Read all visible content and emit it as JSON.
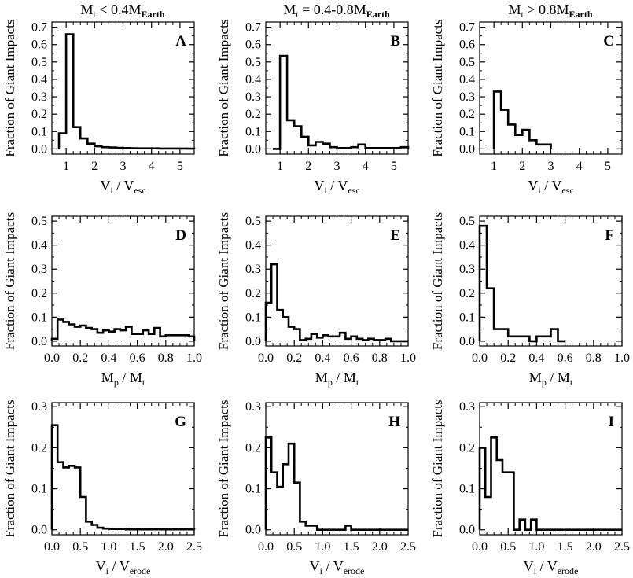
{
  "column_titles": [
    {
      "main": "M",
      "sub": "t",
      "rest": " < 0.4M",
      "sub2": "Earth"
    },
    {
      "main": "M",
      "sub": "t",
      "rest": " = 0.4-0.8M",
      "sub2": "Earth"
    },
    {
      "main": "M",
      "sub": "t",
      "rest": " > 0.8M",
      "sub2": "Earth"
    }
  ],
  "ylabel": "Fraction of Giant Impacts",
  "colors": {
    "line": "#000000",
    "background": "#ffffff"
  },
  "chart_data": [
    {
      "type": "histogram",
      "panel": "A",
      "row": 0,
      "col": 0,
      "xlim": [
        0.5,
        5.5
      ],
      "ylim": [
        -0.03,
        0.73
      ],
      "xticks": [
        1,
        2,
        3,
        4,
        5
      ],
      "yticks": [
        0.0,
        0.1,
        0.2,
        0.3,
        0.4,
        0.5,
        0.6,
        0.7
      ],
      "xlabel": {
        "main": "V",
        "sub": "i",
        "sep": " / ",
        "main2": "V",
        "sub2": "esc"
      },
      "bin_start": 0.75,
      "bin_width": 0.25,
      "values": [
        0.09,
        0.66,
        0.125,
        0.06,
        0.03,
        0.015,
        0.01,
        0.008,
        0.006,
        0.005,
        0.004,
        0.003,
        0.003,
        0.003,
        0.002,
        0.002,
        0.002,
        0.002,
        0.001
      ]
    },
    {
      "type": "histogram",
      "panel": "B",
      "row": 0,
      "col": 1,
      "xlim": [
        0.5,
        5.5
      ],
      "ylim": [
        -0.03,
        0.73
      ],
      "xticks": [
        1,
        2,
        3,
        4,
        5
      ],
      "yticks": [
        0.0,
        0.1,
        0.2,
        0.3,
        0.4,
        0.5,
        0.6,
        0.7
      ],
      "xlabel": {
        "main": "V",
        "sub": "i",
        "sep": " / ",
        "main2": "V",
        "sub2": "esc"
      },
      "bin_start": 0.75,
      "bin_width": 0.25,
      "values": [
        0.0,
        0.535,
        0.165,
        0.13,
        0.07,
        0.02,
        0.04,
        0.03,
        0.01,
        0.005,
        0.005,
        0.01,
        0.025,
        0.005,
        0.005,
        0.005,
        0.005,
        0.005,
        0.01,
        0.0
      ]
    },
    {
      "type": "histogram",
      "panel": "C",
      "row": 0,
      "col": 2,
      "xlim": [
        0.5,
        5.5
      ],
      "ylim": [
        -0.03,
        0.73
      ],
      "xticks": [
        1,
        2,
        3,
        4,
        5
      ],
      "yticks": [
        0.0,
        0.1,
        0.2,
        0.3,
        0.4,
        0.5,
        0.6,
        0.7
      ],
      "xlabel": {
        "main": "V",
        "sub": "i",
        "sep": " / ",
        "main2": "V",
        "sub2": "esc"
      },
      "bin_start": 1.0,
      "bin_width": 0.25,
      "values": [
        0.33,
        0.225,
        0.14,
        0.08,
        0.11,
        0.05,
        0.025,
        0.025
      ]
    },
    {
      "type": "histogram",
      "panel": "D",
      "row": 1,
      "col": 0,
      "xlim": [
        0,
        1
      ],
      "ylim": [
        -0.02,
        0.52
      ],
      "xticks": [
        0.0,
        0.2,
        0.4,
        0.6,
        0.8,
        1.0
      ],
      "yticks": [
        0.0,
        0.1,
        0.2,
        0.3,
        0.4,
        0.5
      ],
      "xlabel": {
        "main": "M",
        "sub": "p",
        "sep": " / ",
        "main2": "M",
        "sub2": "t"
      },
      "bin_start": 0.0,
      "bin_width": 0.04,
      "values": [
        0.01,
        0.09,
        0.08,
        0.07,
        0.06,
        0.065,
        0.055,
        0.05,
        0.035,
        0.045,
        0.04,
        0.05,
        0.045,
        0.06,
        0.03,
        0.03,
        0.045,
        0.03,
        0.055,
        0.02,
        0.025,
        0.025,
        0.025,
        0.025,
        0.02
      ]
    },
    {
      "type": "histogram",
      "panel": "E",
      "row": 1,
      "col": 1,
      "xlim": [
        0,
        1
      ],
      "ylim": [
        -0.02,
        0.52
      ],
      "xticks": [
        0.0,
        0.2,
        0.4,
        0.6,
        0.8,
        1.0
      ],
      "yticks": [
        0.0,
        0.1,
        0.2,
        0.3,
        0.4,
        0.5
      ],
      "xlabel": {
        "main": "M",
        "sub": "p",
        "sep": " / ",
        "main2": "M",
        "sub2": "t"
      },
      "bin_start": 0.0,
      "bin_width": 0.04,
      "values": [
        0.16,
        0.32,
        0.13,
        0.1,
        0.06,
        0.05,
        0.005,
        0.01,
        0.03,
        0.015,
        0.025,
        0.02,
        0.02,
        0.035,
        0.01,
        0.02,
        0.01,
        0.005,
        0.01,
        0.005,
        0.005,
        0.01,
        0.0,
        0.0,
        0.0
      ]
    },
    {
      "type": "histogram",
      "panel": "F",
      "row": 1,
      "col": 2,
      "xlim": [
        0,
        1
      ],
      "ylim": [
        -0.02,
        0.52
      ],
      "xticks": [
        0.0,
        0.2,
        0.4,
        0.6,
        0.8,
        1.0
      ],
      "yticks": [
        0.0,
        0.1,
        0.2,
        0.3,
        0.4,
        0.5
      ],
      "xlabel": {
        "main": "M",
        "sub": "p",
        "sep": " / ",
        "main2": "M",
        "sub2": "t"
      },
      "bin_start": 0.0,
      "bin_width": 0.05,
      "values": [
        0.48,
        0.22,
        0.05,
        0.05,
        0.02,
        0.02,
        0.02,
        0.0,
        0.02,
        0.02,
        0.05,
        0.0
      ]
    },
    {
      "type": "histogram",
      "panel": "G",
      "row": 2,
      "col": 0,
      "xlim": [
        0,
        2.5
      ],
      "ylim": [
        -0.012,
        0.31
      ],
      "xticks": [
        0.0,
        0.5,
        1.0,
        1.5,
        2.0,
        2.5
      ],
      "yticks": [
        0.0,
        0.1,
        0.2,
        0.3
      ],
      "xlabel": {
        "main": "V",
        "sub": "i",
        "sep": " / ",
        "main2": "V",
        "sub2": "erode"
      },
      "bin_start": 0.0,
      "bin_width": 0.1,
      "values": [
        0.255,
        0.165,
        0.152,
        0.156,
        0.152,
        0.08,
        0.02,
        0.012,
        0.005,
        0.003,
        0.002,
        0.002,
        0.002,
        0.001,
        0.001,
        0.001,
        0.001,
        0.001,
        0.001,
        0.001,
        0.001,
        0.001,
        0.001,
        0.001,
        0.001
      ]
    },
    {
      "type": "histogram",
      "panel": "H",
      "row": 2,
      "col": 1,
      "xlim": [
        0,
        2.5
      ],
      "ylim": [
        -0.012,
        0.31
      ],
      "xticks": [
        0.0,
        0.5,
        1.0,
        1.5,
        2.0,
        2.5
      ],
      "yticks": [
        0.0,
        0.1,
        0.2,
        0.3
      ],
      "xlabel": {
        "main": "V",
        "sub": "i",
        "sep": " / ",
        "main2": "V",
        "sub2": "erode"
      },
      "bin_start": 0.0,
      "bin_width": 0.1,
      "values": [
        0.225,
        0.14,
        0.105,
        0.16,
        0.21,
        0.115,
        0.02,
        0.01,
        0.01,
        0.0,
        0.0,
        0.0,
        0.0,
        0.0,
        0.01,
        0.0,
        0.0,
        0.0,
        0.0,
        0.0,
        0.0,
        0.0,
        0.0,
        0.0,
        0.0
      ]
    },
    {
      "type": "histogram",
      "panel": "I",
      "row": 2,
      "col": 2,
      "xlim": [
        0,
        2.5
      ],
      "ylim": [
        -0.012,
        0.31
      ],
      "xticks": [
        0.0,
        0.5,
        1.0,
        1.5,
        2.0,
        2.5
      ],
      "yticks": [
        0.0,
        0.1,
        0.2,
        0.3
      ],
      "xlabel": {
        "main": "V",
        "sub": "i",
        "sep": " / ",
        "main2": "V",
        "sub2": "erode"
      },
      "bin_start": 0.0,
      "bin_width": 0.1,
      "values": [
        0.2,
        0.08,
        0.225,
        0.17,
        0.14,
        0.14,
        0.0,
        0.025,
        0.0,
        0.025,
        0.0,
        0.0,
        0.0,
        0.0,
        0.0,
        0.0,
        0.0,
        0.0,
        0.0,
        0.0,
        0.0,
        0.0,
        0.0,
        0.0,
        0.0
      ]
    }
  ]
}
